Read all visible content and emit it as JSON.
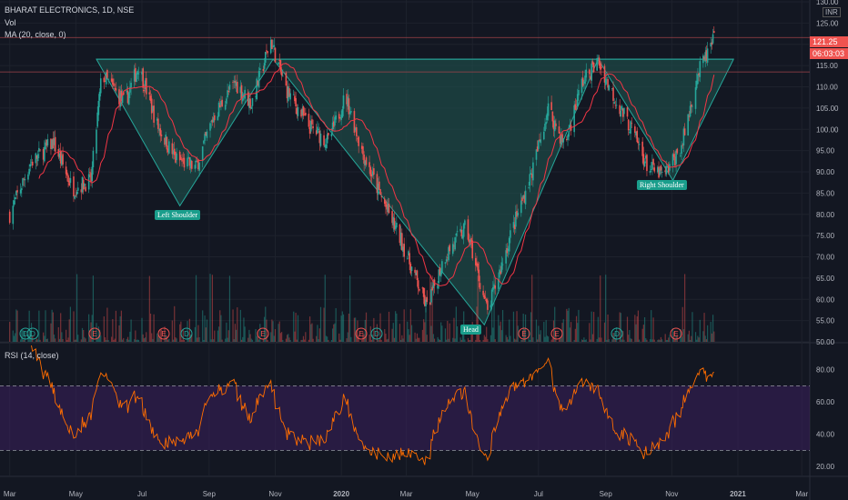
{
  "header": {
    "symbol": "BHARAT ELECTRONICS, 1D, NSE",
    "vol": "Vol",
    "ma": "MA (20, close, 0)",
    "rsi": "RSI (14, close)",
    "currency": "INR"
  },
  "price_tags": {
    "last": "121.25",
    "timer": "06:03:03"
  },
  "colors": {
    "up": "#26a69a",
    "down": "#ef5350",
    "pattern_fill": "#1f4f4c",
    "ma": "#f23645",
    "rsi": "#ff6d00",
    "rsi_band": "#3a1f5d",
    "bg": "#131722",
    "label_bg": "#1a9e8c"
  },
  "pattern_labels": {
    "left": "Left Shoulder",
    "head": "Head",
    "right": "Right Shoulder"
  },
  "chart_data": {
    "type": "candlestick",
    "price_axis": {
      "ticks": [
        130,
        125,
        120,
        115,
        110,
        105,
        100,
        95,
        90,
        85,
        80,
        75,
        70,
        65,
        60,
        55,
        50
      ],
      "range": [
        50,
        130
      ]
    },
    "rsi_axis": {
      "ticks": [
        80,
        60,
        40,
        20
      ],
      "range": [
        15,
        95
      ],
      "bands": [
        70,
        30
      ]
    },
    "time_axis": [
      "Mar",
      "May",
      "Jul",
      "Sep",
      "Nov",
      "2020",
      "Mar",
      "May",
      "Jul",
      "Sep",
      "Nov",
      "2021",
      "Mar"
    ],
    "key_price_path": [
      [
        "2019-03-01",
        80
      ],
      [
        "2019-03-20",
        92
      ],
      [
        "2019-04-10",
        97
      ],
      [
        "2019-04-28",
        86
      ],
      [
        "2019-05-15",
        88
      ],
      [
        "2019-05-25",
        113
      ],
      [
        "2019-06-15",
        106
      ],
      [
        "2019-06-28",
        115
      ],
      [
        "2019-07-15",
        101
      ],
      [
        "2019-08-01",
        93
      ],
      [
        "2019-08-20",
        91
      ],
      [
        "2019-09-05",
        103
      ],
      [
        "2019-09-25",
        111
      ],
      [
        "2019-10-10",
        106
      ],
      [
        "2019-10-28",
        121
      ],
      [
        "2019-11-10",
        110
      ],
      [
        "2019-12-01",
        101
      ],
      [
        "2019-12-20",
        97
      ],
      [
        "2020-01-05",
        108
      ],
      [
        "2020-01-20",
        95
      ],
      [
        "2020-02-05",
        85
      ],
      [
        "2020-02-25",
        74
      ],
      [
        "2020-03-20",
        58
      ],
      [
        "2020-04-05",
        70
      ],
      [
        "2020-04-25",
        77
      ],
      [
        "2020-05-15",
        57
      ],
      [
        "2020-06-05",
        75
      ],
      [
        "2020-06-25",
        90
      ],
      [
        "2020-07-10",
        105
      ],
      [
        "2020-07-25",
        96
      ],
      [
        "2020-08-10",
        111
      ],
      [
        "2020-08-25",
        116
      ],
      [
        "2020-09-10",
        107
      ],
      [
        "2020-09-25",
        100
      ],
      [
        "2020-10-10",
        91
      ],
      [
        "2020-10-25",
        89
      ],
      [
        "2020-11-10",
        96
      ],
      [
        "2020-11-25",
        113
      ],
      [
        "2020-12-10",
        121
      ]
    ],
    "ma_period": 20,
    "rsi_period": 14,
    "pattern": {
      "neckline": [
        [
          "2019-05-20",
          116.5
        ],
        [
          "2020-12-20",
          116.5
        ]
      ],
      "left_shoulder_low": [
        "2019-08-05",
        82
      ],
      "head_low": [
        "2020-05-12",
        54
      ],
      "right_shoulder_low": [
        "2020-11-02",
        88
      ],
      "target_apex": [
        "2020-12-25",
        116.5
      ]
    },
    "horizontal_lines": [
      121.6,
      113.5
    ],
    "event_markers": [
      "D",
      "D",
      "E",
      "E",
      "D",
      "E",
      "E",
      "D",
      "E",
      "E",
      "D",
      "E"
    ]
  }
}
